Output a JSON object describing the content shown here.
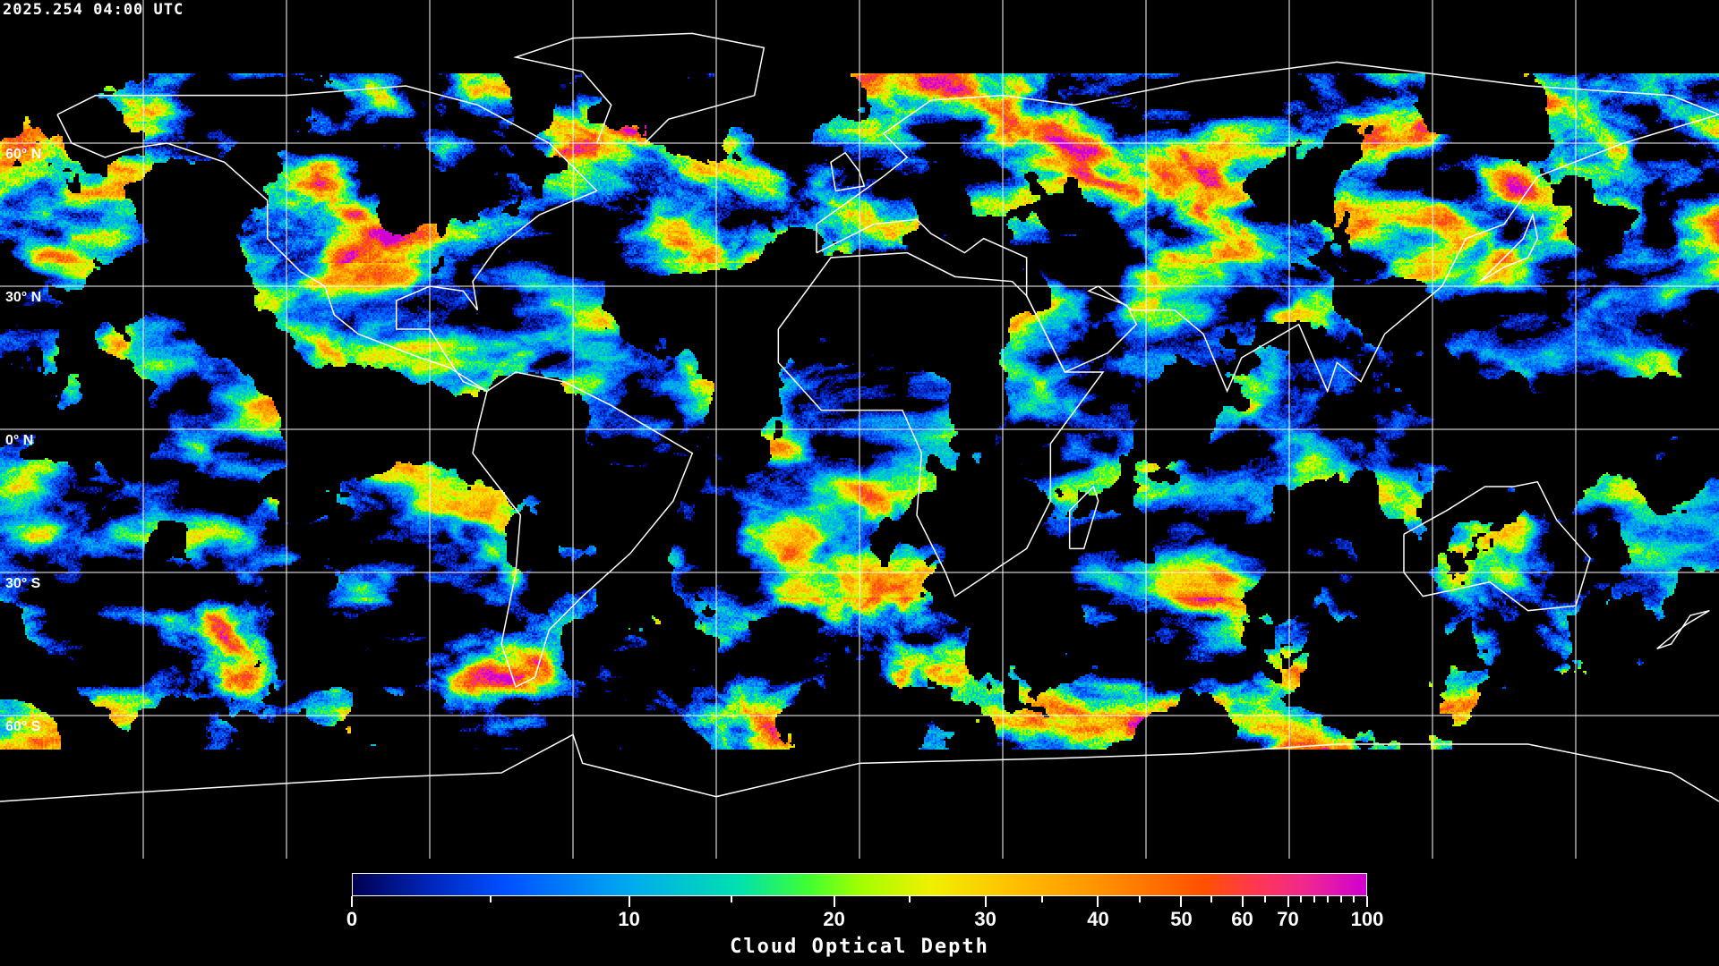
{
  "header": {
    "timestamp": "2025.254 04:00 UTC"
  },
  "map": {
    "projection": "equirectangular",
    "lon_range": [
      -180,
      180
    ],
    "lat_range": [
      -90,
      90
    ],
    "grid_spacing_deg": 30,
    "lat_labels": [
      "60° N",
      "30° N",
      "0° N",
      "30° S",
      "60° S"
    ],
    "gridline_color": "#ffffff",
    "coastline_color": "#ffffff",
    "background_color": "#000000"
  },
  "colorbar": {
    "title": "Cloud Optical Depth",
    "range": [
      0,
      100
    ],
    "tick_labels": [
      "0",
      "10",
      "20",
      "30",
      "40",
      "50",
      "60",
      "70",
      "100"
    ],
    "colors": [
      "#000050",
      "#0050ff",
      "#00a8f0",
      "#40ff30",
      "#f0f000",
      "#ffc000",
      "#ff5000",
      "#ff3850",
      "#d000d0"
    ]
  }
}
